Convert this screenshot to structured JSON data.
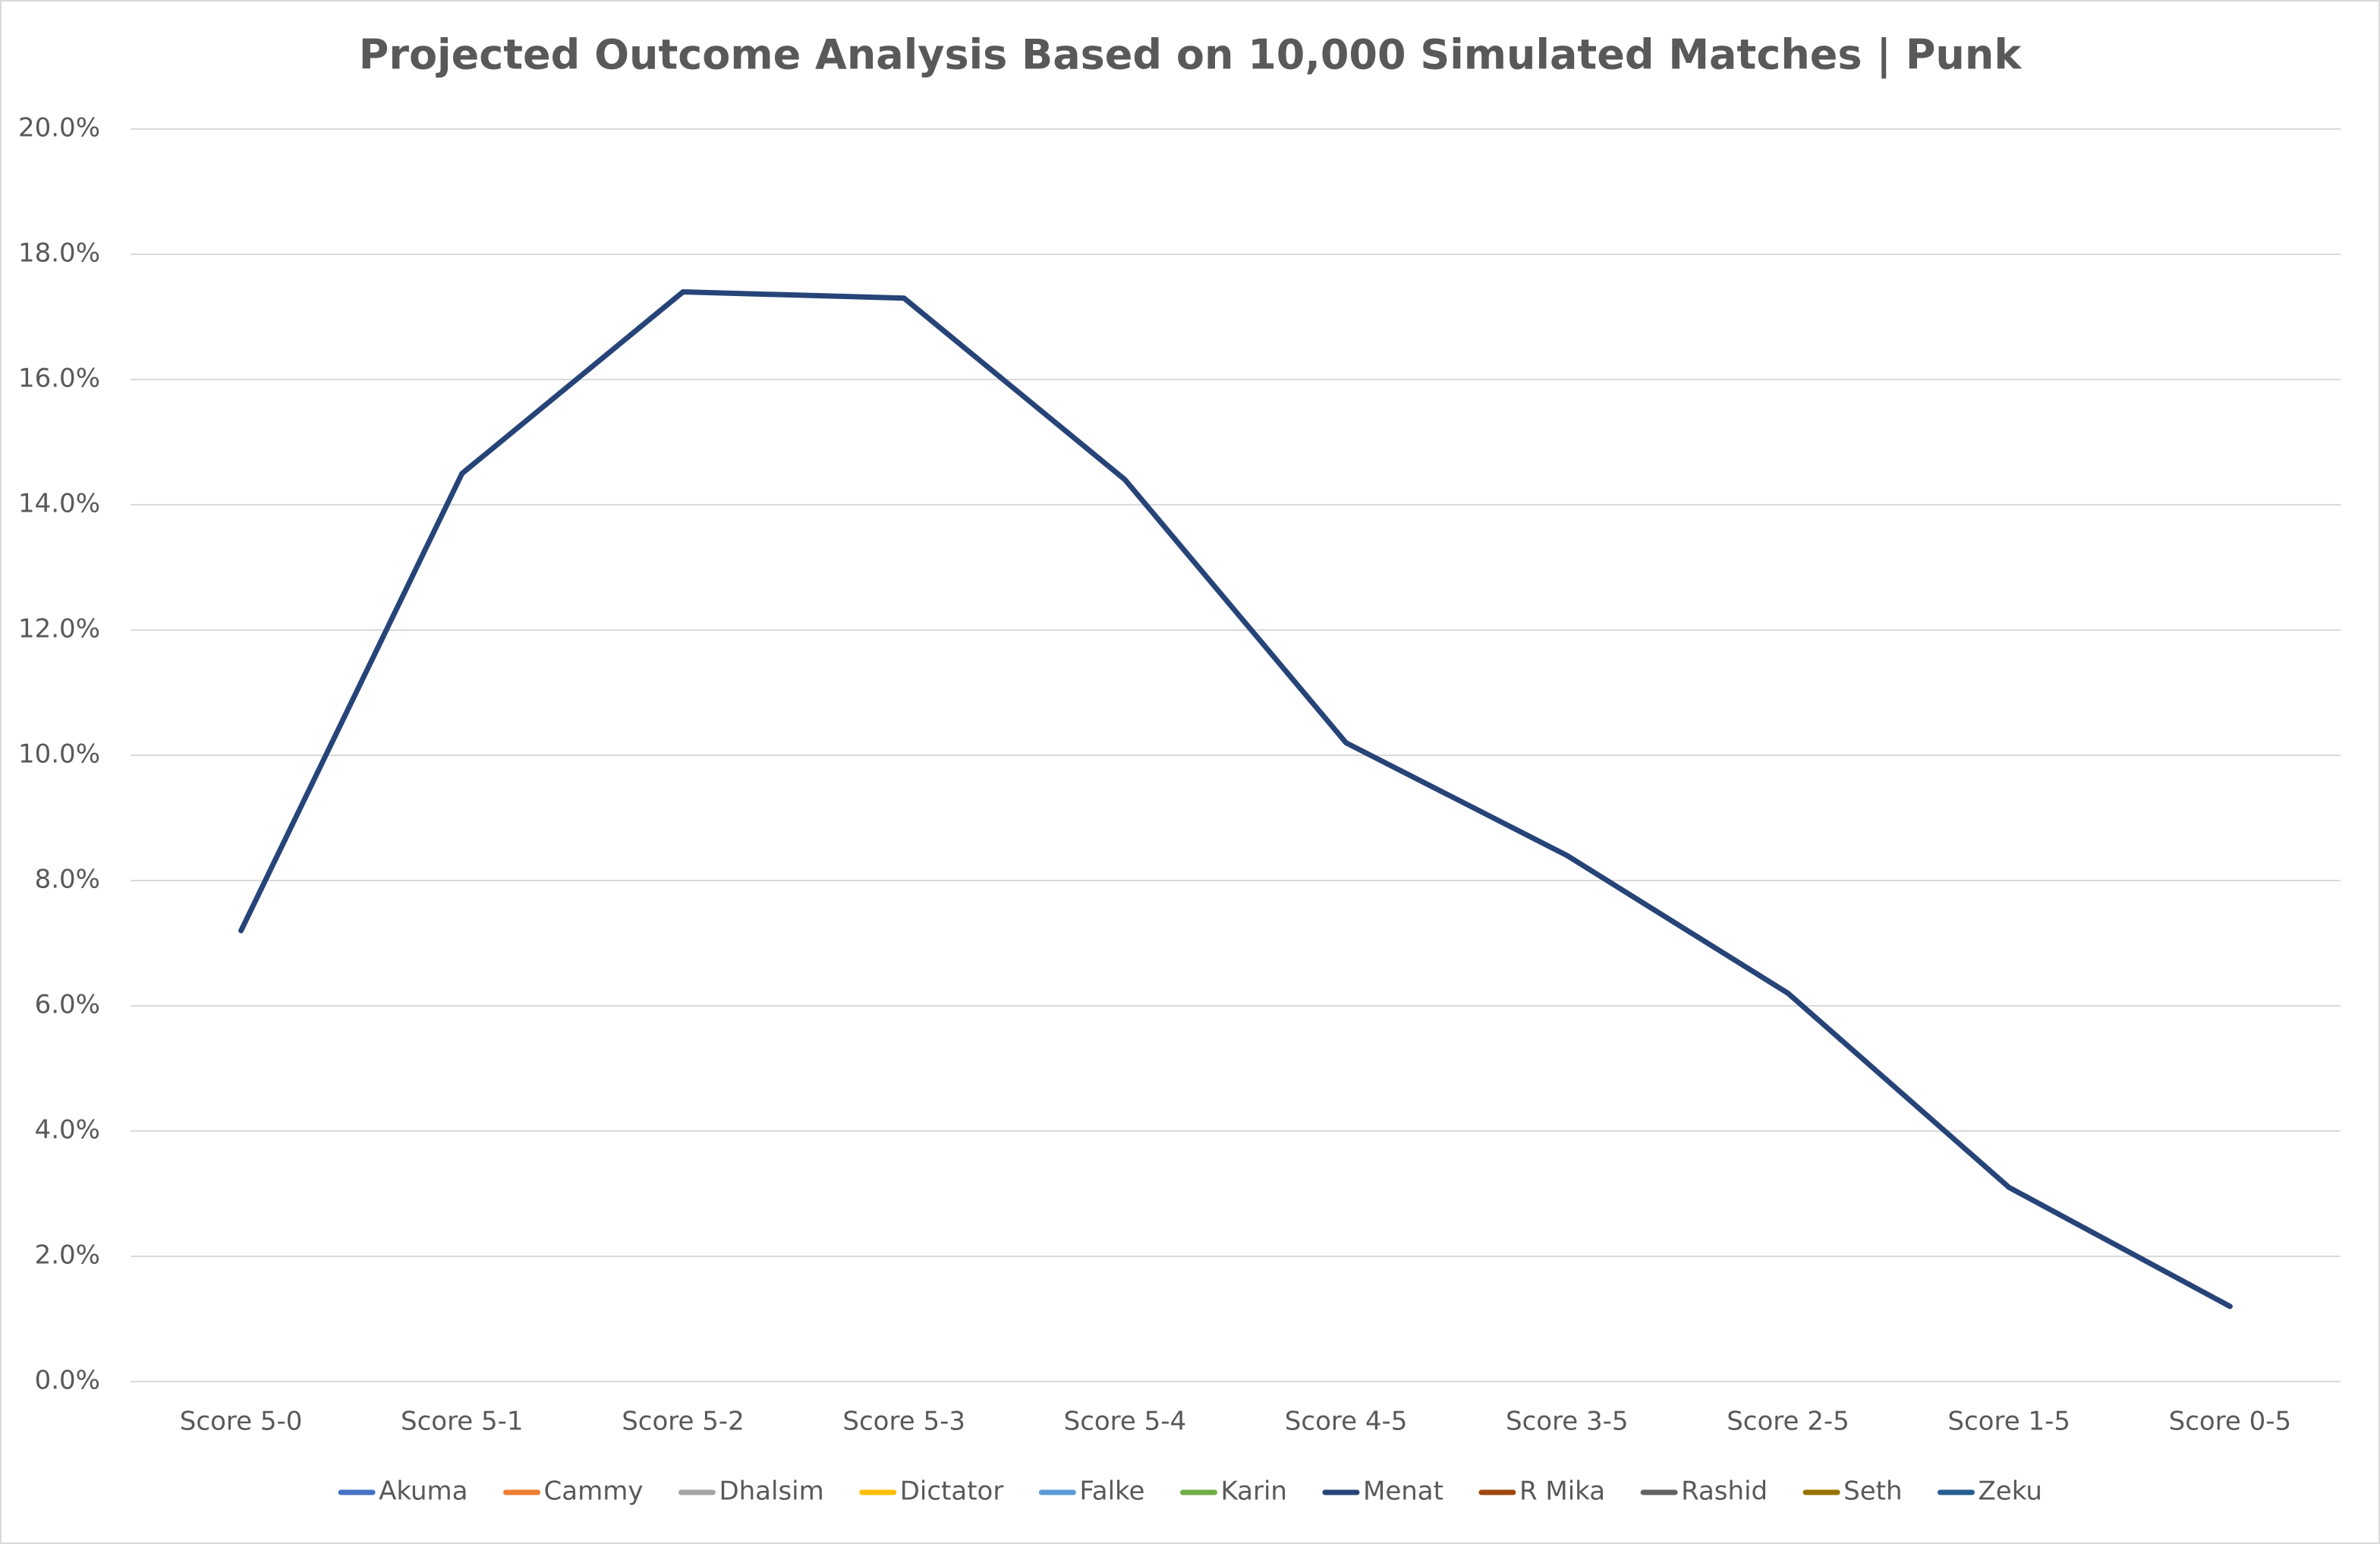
{
  "chart_data": {
    "type": "line",
    "title": "Projected Outcome Analysis Based on 10,000 Simulated Matches | Punk",
    "categories": [
      "Score 5-0",
      "Score 5-1",
      "Score 5-2",
      "Score 5-3",
      "Score 5-4",
      "Score 4-5",
      "Score 3-5",
      "Score 2-5",
      "Score 1-5",
      "Score 0-5"
    ],
    "series": [
      {
        "name": "Akuma",
        "color": "#4472c4",
        "values": [
          null,
          null,
          null,
          null,
          null,
          null,
          null,
          null,
          null,
          null
        ]
      },
      {
        "name": "Cammy",
        "color": "#ed7d31",
        "values": [
          null,
          null,
          null,
          null,
          null,
          null,
          null,
          null,
          null,
          null
        ]
      },
      {
        "name": "Dhalsim",
        "color": "#a5a5a5",
        "values": [
          null,
          null,
          null,
          null,
          null,
          null,
          null,
          null,
          null,
          null
        ]
      },
      {
        "name": "Dictator",
        "color": "#ffc000",
        "values": [
          null,
          null,
          null,
          null,
          null,
          null,
          null,
          null,
          null,
          null
        ]
      },
      {
        "name": "Falke",
        "color": "#5b9bd5",
        "values": [
          null,
          null,
          null,
          null,
          null,
          null,
          null,
          null,
          null,
          null
        ]
      },
      {
        "name": "Karin",
        "color": "#70ad47",
        "values": [
          null,
          null,
          null,
          null,
          null,
          null,
          null,
          null,
          null,
          null
        ]
      },
      {
        "name": "Menat",
        "color": "#264478",
        "values": [
          7.2,
          14.5,
          17.4,
          17.3,
          14.4,
          10.2,
          8.4,
          6.2,
          3.1,
          1.2
        ]
      },
      {
        "name": "R Mika",
        "color": "#9e480e",
        "values": [
          null,
          null,
          null,
          null,
          null,
          null,
          null,
          null,
          null,
          null
        ]
      },
      {
        "name": "Rashid",
        "color": "#636363",
        "values": [
          null,
          null,
          null,
          null,
          null,
          null,
          null,
          null,
          null,
          null
        ]
      },
      {
        "name": "Seth",
        "color": "#997300",
        "values": [
          null,
          null,
          null,
          null,
          null,
          null,
          null,
          null,
          null,
          null
        ]
      },
      {
        "name": "Zeku",
        "color": "#255e91",
        "values": [
          null,
          null,
          null,
          null,
          null,
          null,
          null,
          null,
          null,
          null
        ]
      }
    ],
    "ylim": [
      0,
      20
    ],
    "yticks": [
      {
        "value": 0,
        "label": "0.0%"
      },
      {
        "value": 2,
        "label": "2.0%"
      },
      {
        "value": 4,
        "label": "4.0%"
      },
      {
        "value": 6,
        "label": "6.0%"
      },
      {
        "value": 8,
        "label": "8.0%"
      },
      {
        "value": 10,
        "label": "10.0%"
      },
      {
        "value": 12,
        "label": "12.0%"
      },
      {
        "value": 14,
        "label": "14.0%"
      },
      {
        "value": 16,
        "label": "16.0%"
      },
      {
        "value": 18,
        "label": "18.0%"
      },
      {
        "value": 20,
        "label": "20.0%"
      }
    ],
    "grid": true,
    "legend": "bottom"
  }
}
